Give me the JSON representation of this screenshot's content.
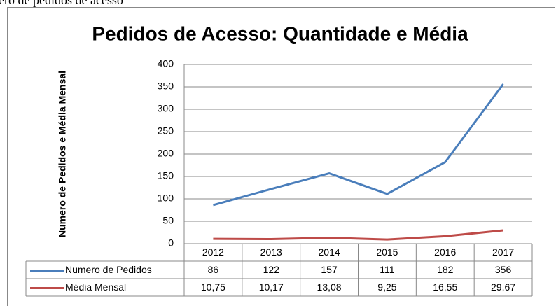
{
  "caption": "ero de pedidos de acesso",
  "chart_data": {
    "type": "line",
    "title": "Pedidos de Acesso: Quantidade e Média",
    "y_label": "Numero de Pedidos e Média Mensal",
    "categories": [
      "2012",
      "2013",
      "2014",
      "2015",
      "2016",
      "2017"
    ],
    "series": [
      {
        "name": "Numero de Pedidos",
        "color": "#4a7ebb",
        "values": [
          86,
          122,
          157,
          111,
          182,
          356
        ]
      },
      {
        "name": "Média Mensal",
        "color": "#be4b48",
        "values": [
          10.75,
          10.17,
          13.08,
          9.25,
          16.55,
          29.67
        ],
        "value_labels": [
          "10,75",
          "10,17",
          "13,08",
          "9,25",
          "16,55",
          "29,67"
        ]
      }
    ],
    "ylim": [
      0,
      400
    ],
    "yticks": [
      0,
      50,
      100,
      150,
      200,
      250,
      300,
      350,
      400
    ],
    "grid": true
  }
}
